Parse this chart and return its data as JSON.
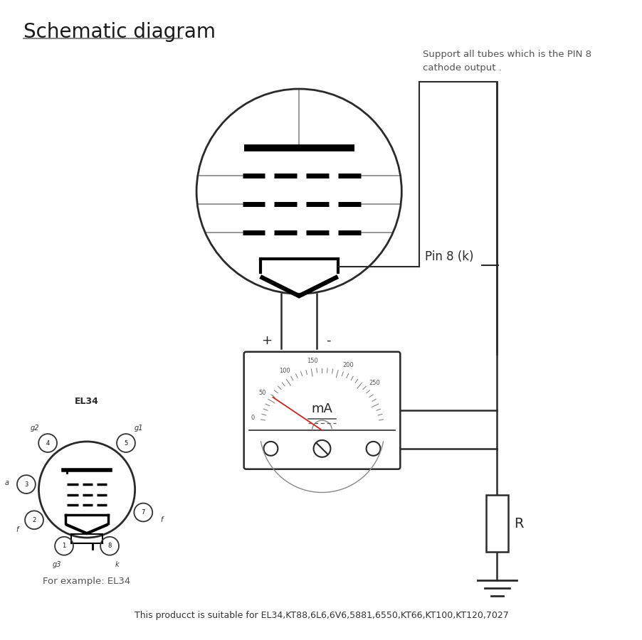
{
  "title": "Schematic diagram",
  "bottom_text": "This producct is suitable for EL34,KT88,6L6,6V6,5881,6550,KT66,KT100,KT120,7027",
  "pin8_label": "Pin 8 (k)",
  "support_text": "Support all tubes which is the PIN 8\ncathode output .",
  "example_label": "For example: EL34",
  "el34_label": "EL34",
  "plus_label": "+",
  "minus_label": "-",
  "R_label": "R",
  "mA_label": "mA",
  "line_color": "#2a2a2a",
  "gray_color": "#888888",
  "red_color": "#cc2222"
}
